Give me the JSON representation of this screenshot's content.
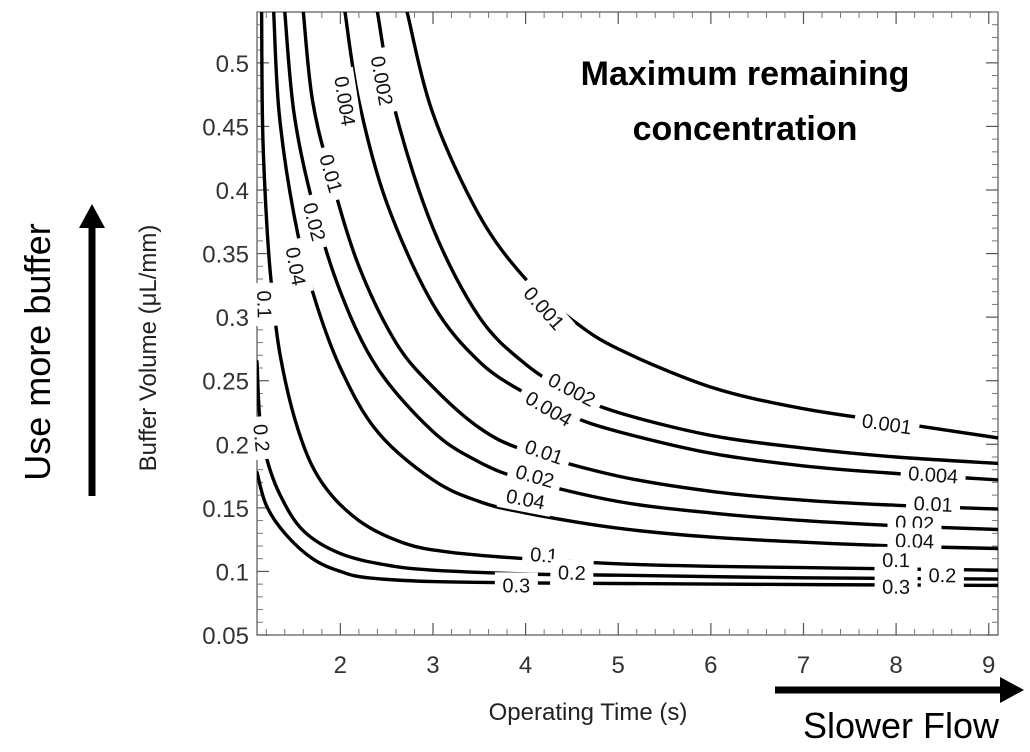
{
  "chart_data": {
    "type": "line",
    "subtype": "contour",
    "title": "Maximum remaining concentration",
    "xlabel": "Operating Time (s)",
    "ylabel": "Buffer Volume (μL/mm)",
    "xlim": [
      1.1,
      9.1
    ],
    "ylim": [
      0.05,
      0.54
    ],
    "xticks": [
      2,
      3,
      4,
      5,
      6,
      7,
      8,
      9
    ],
    "yticks": [
      0.05,
      0.1,
      0.15,
      0.2,
      0.25,
      0.3,
      0.35,
      0.4,
      0.45,
      0.5
    ],
    "minor_ticks": true,
    "grid": false,
    "annotations": [
      {
        "text": "Use more buffer",
        "direction": "up"
      },
      {
        "text": "Slower Flow",
        "direction": "right"
      }
    ],
    "series": [
      {
        "name": "0.001",
        "points": [
          [
            2.72,
            0.54
          ],
          [
            3.0,
            0.46
          ],
          [
            3.5,
            0.38
          ],
          [
            4.0,
            0.33
          ],
          [
            4.5,
            0.298
          ],
          [
            5.0,
            0.275
          ],
          [
            6.0,
            0.245
          ],
          [
            7.0,
            0.228
          ],
          [
            8.0,
            0.217
          ],
          [
            9.1,
            0.205
          ]
        ],
        "labels": [
          [
            4.2,
            0.307
          ],
          [
            7.9,
            0.216
          ]
        ]
      },
      {
        "name": "0.002",
        "points": [
          [
            2.4,
            0.54
          ],
          [
            2.6,
            0.46
          ],
          [
            3.0,
            0.37
          ],
          [
            3.5,
            0.3
          ],
          [
            4.0,
            0.263
          ],
          [
            4.5,
            0.24
          ],
          [
            5.0,
            0.225
          ],
          [
            6.0,
            0.207
          ],
          [
            7.0,
            0.197
          ],
          [
            8.0,
            0.19
          ],
          [
            9.1,
            0.185
          ]
        ],
        "labels": [
          [
            2.45,
            0.486
          ],
          [
            4.5,
            0.243
          ]
        ]
      },
      {
        "name": "0.004",
        "points": [
          [
            2.05,
            0.54
          ],
          [
            2.2,
            0.47
          ],
          [
            2.5,
            0.39
          ],
          [
            3.0,
            0.31
          ],
          [
            3.5,
            0.265
          ],
          [
            4.0,
            0.24
          ],
          [
            4.5,
            0.222
          ],
          [
            5.0,
            0.21
          ],
          [
            6.0,
            0.193
          ],
          [
            7.0,
            0.183
          ],
          [
            8.0,
            0.177
          ],
          [
            9.1,
            0.172
          ]
        ],
        "labels": [
          [
            2.05,
            0.47
          ],
          [
            4.25,
            0.228
          ],
          [
            8.4,
            0.176
          ]
        ]
      },
      {
        "name": "0.01",
        "points": [
          [
            1.6,
            0.54
          ],
          [
            1.7,
            0.47
          ],
          [
            1.9,
            0.41
          ],
          [
            2.2,
            0.34
          ],
          [
            2.6,
            0.28
          ],
          [
            3.0,
            0.245
          ],
          [
            3.5,
            0.213
          ],
          [
            4.0,
            0.195
          ],
          [
            5.0,
            0.175
          ],
          [
            6.0,
            0.163
          ],
          [
            7.0,
            0.156
          ],
          [
            8.0,
            0.152
          ],
          [
            9.1,
            0.149
          ]
        ],
        "labels": [
          [
            1.9,
            0.413
          ],
          [
            4.2,
            0.194
          ],
          [
            8.4,
            0.153
          ]
        ]
      },
      {
        "name": "0.02",
        "points": [
          [
            1.4,
            0.54
          ],
          [
            1.5,
            0.46
          ],
          [
            1.7,
            0.39
          ],
          [
            2.0,
            0.32
          ],
          [
            2.4,
            0.26
          ],
          [
            3.0,
            0.21
          ],
          [
            3.5,
            0.186
          ],
          [
            4.0,
            0.172
          ],
          [
            5.0,
            0.155
          ],
          [
            6.0,
            0.146
          ],
          [
            7.0,
            0.14
          ],
          [
            8.0,
            0.136
          ],
          [
            9.1,
            0.133
          ]
        ],
        "labels": [
          [
            1.72,
            0.375
          ],
          [
            4.1,
            0.175
          ],
          [
            8.2,
            0.138
          ]
        ]
      },
      {
        "name": "0.04",
        "points": [
          [
            1.28,
            0.54
          ],
          [
            1.34,
            0.46
          ],
          [
            1.5,
            0.38
          ],
          [
            1.7,
            0.32
          ],
          [
            2.0,
            0.26
          ],
          [
            2.4,
            0.21
          ],
          [
            3.0,
            0.172
          ],
          [
            3.5,
            0.155
          ],
          [
            4.0,
            0.146
          ],
          [
            5.0,
            0.134
          ],
          [
            6.0,
            0.127
          ],
          [
            7.0,
            0.123
          ],
          [
            8.0,
            0.12
          ],
          [
            9.1,
            0.118
          ]
        ],
        "labels": [
          [
            1.52,
            0.34
          ],
          [
            4.0,
            0.157
          ],
          [
            8.2,
            0.124
          ]
        ]
      },
      {
        "name": "0.1",
        "points": [
          [
            1.15,
            0.54
          ],
          [
            1.16,
            0.45
          ],
          [
            1.2,
            0.38
          ],
          [
            1.25,
            0.33
          ],
          [
            1.35,
            0.27
          ],
          [
            1.55,
            0.21
          ],
          [
            1.8,
            0.17
          ],
          [
            2.2,
            0.14
          ],
          [
            2.7,
            0.122
          ],
          [
            3.2,
            0.115
          ],
          [
            4.0,
            0.11
          ],
          [
            5.0,
            0.106
          ],
          [
            6.0,
            0.104
          ],
          [
            7.0,
            0.103
          ],
          [
            8.0,
            0.102
          ],
          [
            9.1,
            0.101
          ]
        ],
        "labels": [
          [
            1.18,
            0.31
          ],
          [
            4.2,
            0.113
          ],
          [
            8.0,
            0.109
          ]
        ]
      },
      {
        "name": "0.2",
        "points": [
          [
            1.1,
            0.265
          ],
          [
            1.13,
            0.22
          ],
          [
            1.2,
            0.19
          ],
          [
            1.35,
            0.16
          ],
          [
            1.6,
            0.132
          ],
          [
            2.0,
            0.114
          ],
          [
            2.5,
            0.105
          ],
          [
            3.0,
            0.101
          ],
          [
            4.0,
            0.098
          ],
          [
            5.0,
            0.097
          ],
          [
            7.0,
            0.095
          ],
          [
            9.1,
            0.094
          ]
        ],
        "labels": [
          [
            1.15,
            0.205
          ],
          [
            4.5,
            0.099
          ],
          [
            8.5,
            0.097
          ]
        ]
      },
      {
        "name": "0.3",
        "points": [
          [
            1.1,
            0.178
          ],
          [
            1.2,
            0.152
          ],
          [
            1.4,
            0.13
          ],
          [
            1.7,
            0.11
          ],
          [
            2.0,
            0.1
          ],
          [
            2.3,
            0.095
          ],
          [
            3.0,
            0.092
          ],
          [
            4.0,
            0.091
          ],
          [
            6.0,
            0.09
          ],
          [
            9.1,
            0.089
          ]
        ],
        "labels": [
          [
            3.9,
            0.089
          ],
          [
            8.0,
            0.088
          ]
        ]
      }
    ]
  }
}
